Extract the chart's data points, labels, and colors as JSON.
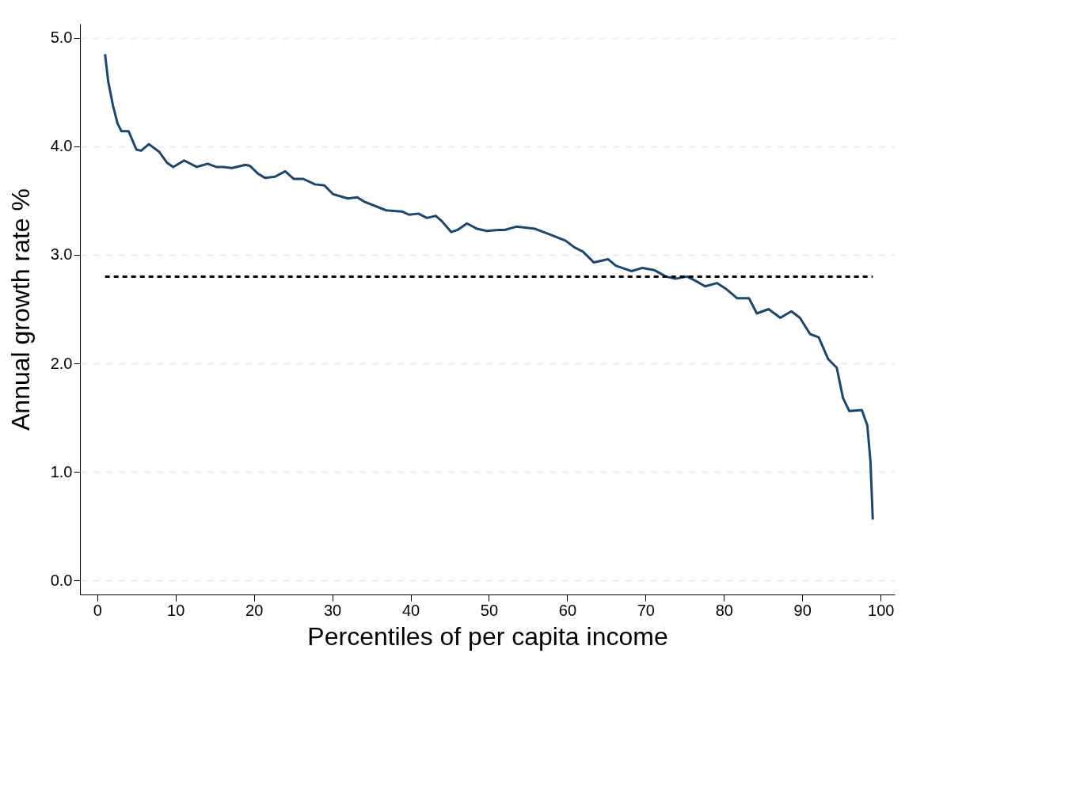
{
  "chart_data": {
    "type": "line",
    "xlabel": "Percentiles of per capita income",
    "ylabel": "Annual growth rate %",
    "xlim": [
      -2.2,
      101.8
    ],
    "ylim": [
      -0.13,
      5.13
    ],
    "xticks": [
      0,
      10,
      20,
      30,
      40,
      50,
      60,
      70,
      80,
      90,
      100
    ],
    "yticks": [
      {
        "value": 0,
        "label": "0.0"
      },
      {
        "value": 1,
        "label": "1.0"
      },
      {
        "value": 2,
        "label": "2.0"
      },
      {
        "value": 3,
        "label": "3.0"
      },
      {
        "value": 4,
        "label": "4.0"
      },
      {
        "value": 5,
        "label": "5.0"
      }
    ],
    "grid": "y",
    "marker": "none",
    "series": [
      {
        "color": "#1a476f",
        "line_style": "solid",
        "x": [
          1.0,
          1.4,
          2.0,
          2.6,
          3.1,
          4.0,
          5.0,
          5.6,
          6.6,
          7.9,
          8.9,
          9.7,
          11.1,
          12.7,
          14.1,
          15.2,
          16.1,
          17.2,
          18.9,
          19.5,
          20.5,
          21.4,
          22.7,
          24.0,
          25.1,
          26.3,
          27.8,
          29.0,
          30.1,
          32.0,
          33.2,
          34.1,
          36.9,
          38.9,
          39.8,
          41.0,
          42.1,
          43.2,
          44.0,
          45.2,
          46.0,
          47.2,
          48.5,
          49.7,
          51.2,
          52.0,
          53.5,
          55.9,
          57.7,
          59.8,
          60.9,
          62.0,
          63.4,
          65.2,
          66.2,
          67.0,
          68.2,
          69.6,
          71.1,
          72.6,
          73.8,
          75.3,
          76.4,
          77.6,
          79.1,
          80.2,
          81.7,
          83.2,
          84.2,
          85.7,
          87.2,
          88.6,
          89.7,
          91.0,
          92.1,
          93.3,
          94.4,
          95.2,
          96.0,
          97.6,
          98.3,
          98.7,
          99.0
        ],
        "values": [
          4.85,
          4.6,
          4.38,
          4.21,
          4.14,
          4.14,
          3.97,
          3.96,
          4.02,
          3.95,
          3.85,
          3.81,
          3.87,
          3.81,
          3.84,
          3.81,
          3.81,
          3.8,
          3.83,
          3.82,
          3.75,
          3.71,
          3.72,
          3.77,
          3.7,
          3.7,
          3.65,
          3.64,
          3.56,
          3.52,
          3.53,
          3.49,
          3.41,
          3.4,
          3.37,
          3.38,
          3.34,
          3.36,
          3.31,
          3.21,
          3.23,
          3.29,
          3.24,
          3.22,
          3.23,
          3.23,
          3.26,
          3.24,
          3.19,
          3.13,
          3.07,
          3.03,
          2.93,
          2.96,
          2.9,
          2.88,
          2.85,
          2.88,
          2.86,
          2.8,
          2.78,
          2.8,
          2.76,
          2.71,
          2.74,
          2.69,
          2.6,
          2.6,
          2.46,
          2.5,
          2.42,
          2.48,
          2.42,
          2.27,
          2.24,
          2.04,
          1.96,
          1.68,
          1.56,
          1.57,
          1.43,
          1.1,
          0.56
        ]
      },
      {
        "color": "#000000",
        "line_style": "dashed",
        "x": [
          1,
          99
        ],
        "values": [
          2.8,
          2.8
        ]
      }
    ]
  }
}
